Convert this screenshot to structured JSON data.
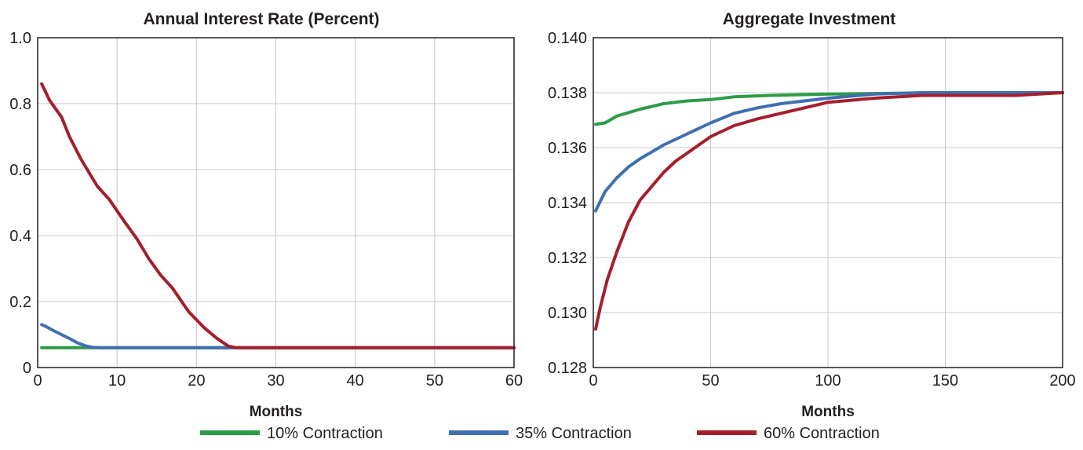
{
  "chart_data": [
    {
      "type": "line",
      "title": "Annual Interest Rate (Percent)",
      "xlabel": "Months",
      "ylabel": "",
      "xlim": [
        0,
        60
      ],
      "ylim": [
        0,
        1.0
      ],
      "xticks": [
        0,
        10,
        20,
        30,
        40,
        50,
        60
      ],
      "yticks": [
        0,
        0.2,
        0.4,
        0.6,
        0.8,
        1.0
      ],
      "xtick_labels": [
        "0",
        "10",
        "20",
        "30",
        "40",
        "50",
        "60"
      ],
      "ytick_labels": [
        "0",
        "0.2",
        "0.4",
        "0.6",
        "0.8",
        "1.0"
      ],
      "grid": true,
      "series": [
        {
          "name": "10% Contraction",
          "color": "#2e9b47",
          "x": [
            0.5,
            60
          ],
          "y": [
            0.06,
            0.06
          ]
        },
        {
          "name": "35% Contraction",
          "color": "#3f6fb1",
          "x": [
            0.5,
            1,
            2,
            3,
            4,
            5,
            6,
            7,
            8,
            60
          ],
          "y": [
            0.13,
            0.125,
            0.112,
            0.1,
            0.088,
            0.075,
            0.066,
            0.061,
            0.06,
            0.06
          ]
        },
        {
          "name": "60% Contraction",
          "color": "#a51e2c",
          "x": [
            0.5,
            1.5,
            3,
            4,
            5.5,
            7.5,
            9,
            11,
            12.5,
            14,
            15.5,
            17,
            19,
            21,
            22.5,
            24,
            25,
            60
          ],
          "y": [
            0.86,
            0.81,
            0.76,
            0.7,
            0.63,
            0.55,
            0.51,
            0.44,
            0.39,
            0.33,
            0.28,
            0.24,
            0.17,
            0.12,
            0.09,
            0.065,
            0.06,
            0.06
          ]
        }
      ]
    },
    {
      "type": "line",
      "title": "Aggregate Investment",
      "xlabel": "Months",
      "ylabel": "",
      "xlim": [
        0,
        200
      ],
      "ylim": [
        0.128,
        0.14
      ],
      "xticks": [
        0,
        50,
        100,
        150,
        200
      ],
      "yticks": [
        0.128,
        0.13,
        0.132,
        0.134,
        0.136,
        0.138,
        0.14
      ],
      "xtick_labels": [
        "0",
        "50",
        "100",
        "150",
        "200"
      ],
      "ytick_labels": [
        "0.128",
        "0.130",
        "0.132",
        "0.134",
        "0.136",
        "0.138",
        "0.140"
      ],
      "grid": true,
      "series": [
        {
          "name": "10% Contraction",
          "color": "#2e9b47",
          "x": [
            1,
            5,
            10,
            20,
            30,
            40,
            50,
            60,
            75,
            100,
            150,
            200
          ],
          "y": [
            0.13685,
            0.1369,
            0.13715,
            0.1374,
            0.1376,
            0.1377,
            0.13775,
            0.13785,
            0.1379,
            0.13795,
            0.138,
            0.138
          ]
        },
        {
          "name": "35% Contraction",
          "color": "#3f6fb1",
          "x": [
            1,
            5,
            10,
            15,
            20,
            25,
            30,
            40,
            50,
            60,
            70,
            80,
            100,
            120,
            140,
            160,
            200
          ],
          "y": [
            0.1337,
            0.1344,
            0.1349,
            0.1353,
            0.1356,
            0.13585,
            0.1361,
            0.1365,
            0.1369,
            0.13725,
            0.13745,
            0.1376,
            0.1378,
            0.13795,
            0.138,
            0.138,
            0.138
          ]
        },
        {
          "name": "60% Contraction",
          "color": "#a51e2c",
          "x": [
            1,
            3,
            6,
            10,
            15,
            20,
            25,
            30,
            35,
            40,
            50,
            60,
            70,
            80,
            100,
            120,
            140,
            160,
            180,
            200
          ],
          "y": [
            0.1294,
            0.1302,
            0.1312,
            0.1322,
            0.1333,
            0.1341,
            0.1346,
            0.1351,
            0.1355,
            0.1358,
            0.1364,
            0.1368,
            0.13705,
            0.13725,
            0.13765,
            0.1378,
            0.1379,
            0.1379,
            0.1379,
            0.138
          ]
        }
      ]
    }
  ],
  "legend": {
    "placement": "bottom",
    "items": [
      {
        "label": "10% Contraction",
        "color": "#2e9b47"
      },
      {
        "label": "35% Contraction",
        "color": "#3f6fb1"
      },
      {
        "label": "60% Contraction",
        "color": "#a51e2c"
      }
    ]
  }
}
